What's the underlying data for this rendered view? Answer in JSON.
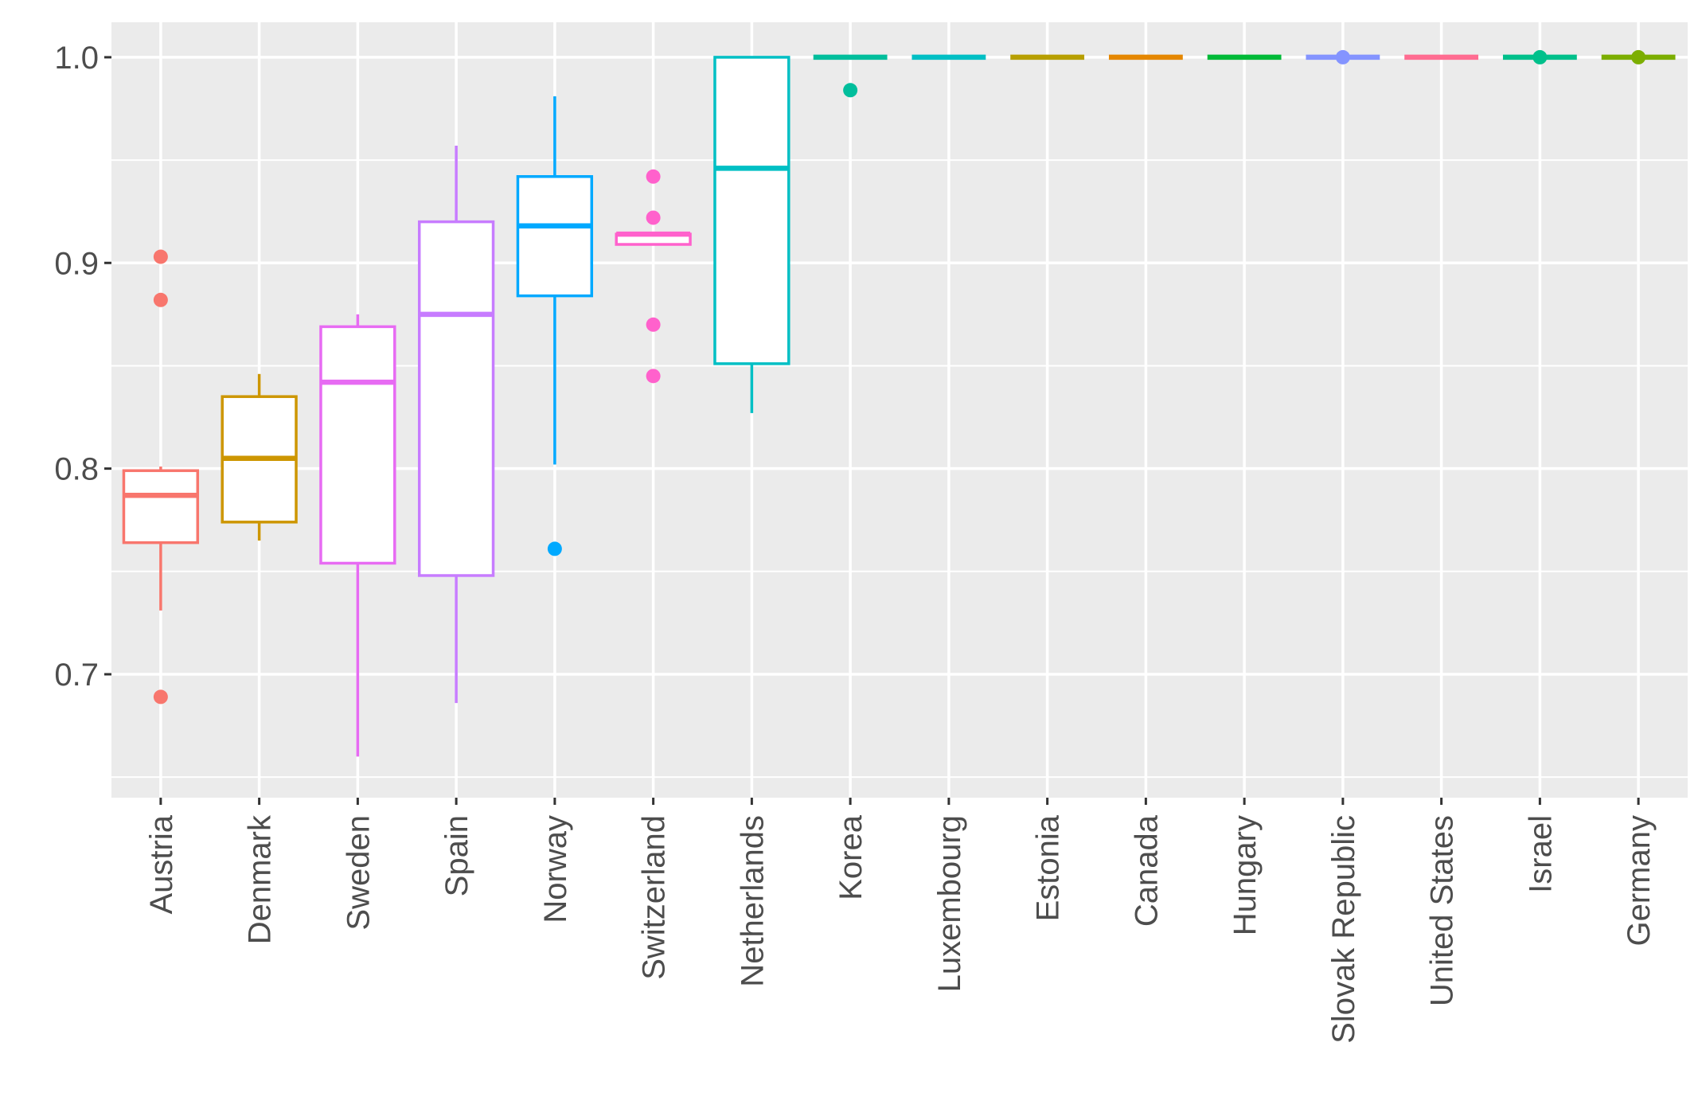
{
  "chart_data": {
    "type": "box",
    "title": "",
    "xlabel": "",
    "ylabel": "",
    "ylim": [
      0.64,
      1.017
    ],
    "yticks": [
      0.7,
      0.8,
      0.9,
      1.0
    ],
    "ytick_labels": [
      "0.7",
      "0.8",
      "0.9",
      "1.0"
    ],
    "legend": "none",
    "grid": true,
    "categories": [
      "Austria",
      "Denmark",
      "Sweden",
      "Spain",
      "Norway",
      "Switzerland",
      "Netherlands",
      "Korea",
      "Luxembourg",
      "Estonia",
      "Canada",
      "Hungary",
      "Slovak Republic",
      "United States",
      "Israel",
      "Germany"
    ],
    "boxes": [
      {
        "name": "Austria",
        "color": "#F8766D",
        "lower_whisker": 0.731,
        "q1": 0.764,
        "median": 0.787,
        "q3": 0.799,
        "upper_whisker": 0.801,
        "outliers": [
          0.903,
          0.882,
          0.689
        ]
      },
      {
        "name": "Denmark",
        "color": "#CD9600",
        "lower_whisker": 0.765,
        "q1": 0.774,
        "median": 0.805,
        "q3": 0.835,
        "upper_whisker": 0.846,
        "outliers": []
      },
      {
        "name": "Sweden",
        "color": "#E76BF3",
        "lower_whisker": 0.66,
        "q1": 0.754,
        "median": 0.842,
        "q3": 0.869,
        "upper_whisker": 0.875,
        "outliers": []
      },
      {
        "name": "Spain",
        "color": "#C77CFF",
        "lower_whisker": 0.686,
        "q1": 0.748,
        "median": 0.875,
        "q3": 0.92,
        "upper_whisker": 0.957,
        "outliers": []
      },
      {
        "name": "Norway",
        "color": "#00A9FF",
        "lower_whisker": 0.802,
        "q1": 0.884,
        "median": 0.918,
        "q3": 0.942,
        "upper_whisker": 0.981,
        "outliers": [
          0.761
        ]
      },
      {
        "name": "Switzerland",
        "color": "#FF61CC",
        "lower_whisker": 0.909,
        "q1": 0.909,
        "median": 0.914,
        "q3": 0.914,
        "upper_whisker": 0.914,
        "outliers": [
          0.942,
          0.922,
          0.87,
          0.845
        ]
      },
      {
        "name": "Netherlands",
        "color": "#00BFC4",
        "lower_whisker": 0.827,
        "q1": 0.851,
        "median": 0.946,
        "q3": 1.0,
        "upper_whisker": 1.0,
        "outliers": []
      },
      {
        "name": "Korea",
        "color": "#00BE9C",
        "lower_whisker": 1.0,
        "q1": 1.0,
        "median": 1.0,
        "q3": 1.0,
        "upper_whisker": 1.0,
        "outliers": [
          0.984
        ]
      },
      {
        "name": "Luxembourg",
        "color": "#00BFC4",
        "lower_whisker": 1.0,
        "q1": 1.0,
        "median": 1.0,
        "q3": 1.0,
        "upper_whisker": 1.0,
        "outliers": []
      },
      {
        "name": "Estonia",
        "color": "#B79F00",
        "lower_whisker": 1.0,
        "q1": 1.0,
        "median": 1.0,
        "q3": 1.0,
        "upper_whisker": 1.0,
        "outliers": []
      },
      {
        "name": "Canada",
        "color": "#E58700",
        "lower_whisker": 1.0,
        "q1": 1.0,
        "median": 1.0,
        "q3": 1.0,
        "upper_whisker": 1.0,
        "outliers": []
      },
      {
        "name": "Hungary",
        "color": "#00BA38",
        "lower_whisker": 1.0,
        "q1": 1.0,
        "median": 1.0,
        "q3": 1.0,
        "upper_whisker": 1.0,
        "outliers": []
      },
      {
        "name": "Slovak Republic",
        "color": "#8494FF",
        "lower_whisker": 1.0,
        "q1": 1.0,
        "median": 1.0,
        "q3": 1.0,
        "upper_whisker": 1.0,
        "outliers": [
          1.0
        ]
      },
      {
        "name": "United States",
        "color": "#FF6C91",
        "lower_whisker": 1.0,
        "q1": 1.0,
        "median": 1.0,
        "q3": 1.0,
        "upper_whisker": 1.0,
        "outliers": []
      },
      {
        "name": "Israel",
        "color": "#00C08B",
        "lower_whisker": 1.0,
        "q1": 1.0,
        "median": 1.0,
        "q3": 1.0,
        "upper_whisker": 1.0,
        "outliers": [
          1.0
        ]
      },
      {
        "name": "Germany",
        "color": "#7CAE00",
        "lower_whisker": 1.0,
        "q1": 1.0,
        "median": 1.0,
        "q3": 1.0,
        "upper_whisker": 1.0,
        "outliers": [
          1.0
        ]
      }
    ]
  }
}
